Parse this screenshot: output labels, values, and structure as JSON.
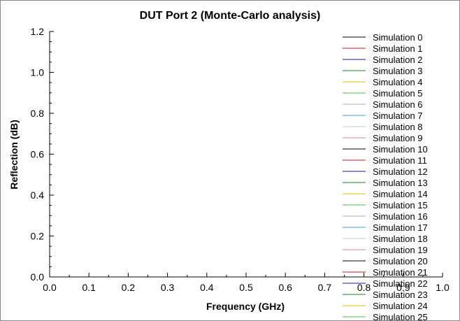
{
  "chart_data": {
    "type": "line",
    "title": "DUT Port 2 (Monte-Carlo analysis)",
    "xlabel": "Frequency (GHz)",
    "ylabel": "Reflection (dB)",
    "xlim": [
      0.0,
      1.0
    ],
    "ylim": [
      0.0,
      1.2
    ],
    "x_ticks": [
      "0.0",
      "0.1",
      "0.2",
      "0.3",
      "0.4",
      "0.5",
      "0.6",
      "0.7",
      "0.8",
      "0.9",
      "1.0"
    ],
    "y_ticks": [
      "0.0",
      "0.2",
      "0.4",
      "0.6",
      "0.8",
      "1.0",
      "1.2"
    ],
    "x_tick_values": [
      0.0,
      0.1,
      0.2,
      0.3,
      0.4,
      0.5,
      0.6,
      0.7,
      0.8,
      0.9,
      1.0
    ],
    "y_tick_values": [
      0.0,
      0.2,
      0.4,
      0.6,
      0.8,
      1.0,
      1.2
    ],
    "grid": false,
    "legend_position": "right",
    "series": [
      {
        "name": "Simulation 0",
        "color": "#000000",
        "values": []
      },
      {
        "name": "Simulation 1",
        "color": "#b22222",
        "values": []
      },
      {
        "name": "Simulation 2",
        "color": "#1c1c8c",
        "values": []
      },
      {
        "name": "Simulation 3",
        "color": "#1e7b1e",
        "values": []
      },
      {
        "name": "Simulation 4",
        "color": "#e6c200",
        "values": []
      },
      {
        "name": "Simulation 5",
        "color": "#4cbf4c",
        "values": []
      },
      {
        "name": "Simulation 6",
        "color": "#a8b0a8",
        "values": []
      },
      {
        "name": "Simulation 7",
        "color": "#3aa0c8",
        "values": []
      },
      {
        "name": "Simulation 8",
        "color": "#c8c8c8",
        "values": []
      },
      {
        "name": "Simulation 9",
        "color": "#d88a8a",
        "values": []
      },
      {
        "name": "Simulation 10",
        "color": "#000000",
        "values": []
      },
      {
        "name": "Simulation 11",
        "color": "#b22222",
        "values": []
      },
      {
        "name": "Simulation 12",
        "color": "#1c1c8c",
        "values": []
      },
      {
        "name": "Simulation 13",
        "color": "#1e7b1e",
        "values": []
      },
      {
        "name": "Simulation 14",
        "color": "#e6c200",
        "values": []
      },
      {
        "name": "Simulation 15",
        "color": "#4cbf4c",
        "values": []
      },
      {
        "name": "Simulation 16",
        "color": "#a8b0a8",
        "values": []
      },
      {
        "name": "Simulation 17",
        "color": "#3aa0c8",
        "values": []
      },
      {
        "name": "Simulation 18",
        "color": "#c8c8c8",
        "values": []
      },
      {
        "name": "Simulation 19",
        "color": "#d88a8a",
        "values": []
      },
      {
        "name": "Simulation 20",
        "color": "#000000",
        "values": []
      },
      {
        "name": "Simulation 21",
        "color": "#b22222",
        "values": []
      },
      {
        "name": "Simulation 22",
        "color": "#1c1c8c",
        "values": []
      },
      {
        "name": "Simulation 23",
        "color": "#1e7b1e",
        "values": []
      },
      {
        "name": "Simulation 24",
        "color": "#e6c200",
        "values": []
      },
      {
        "name": "Simulation 25",
        "color": "#4cbf4c",
        "values": []
      }
    ]
  }
}
